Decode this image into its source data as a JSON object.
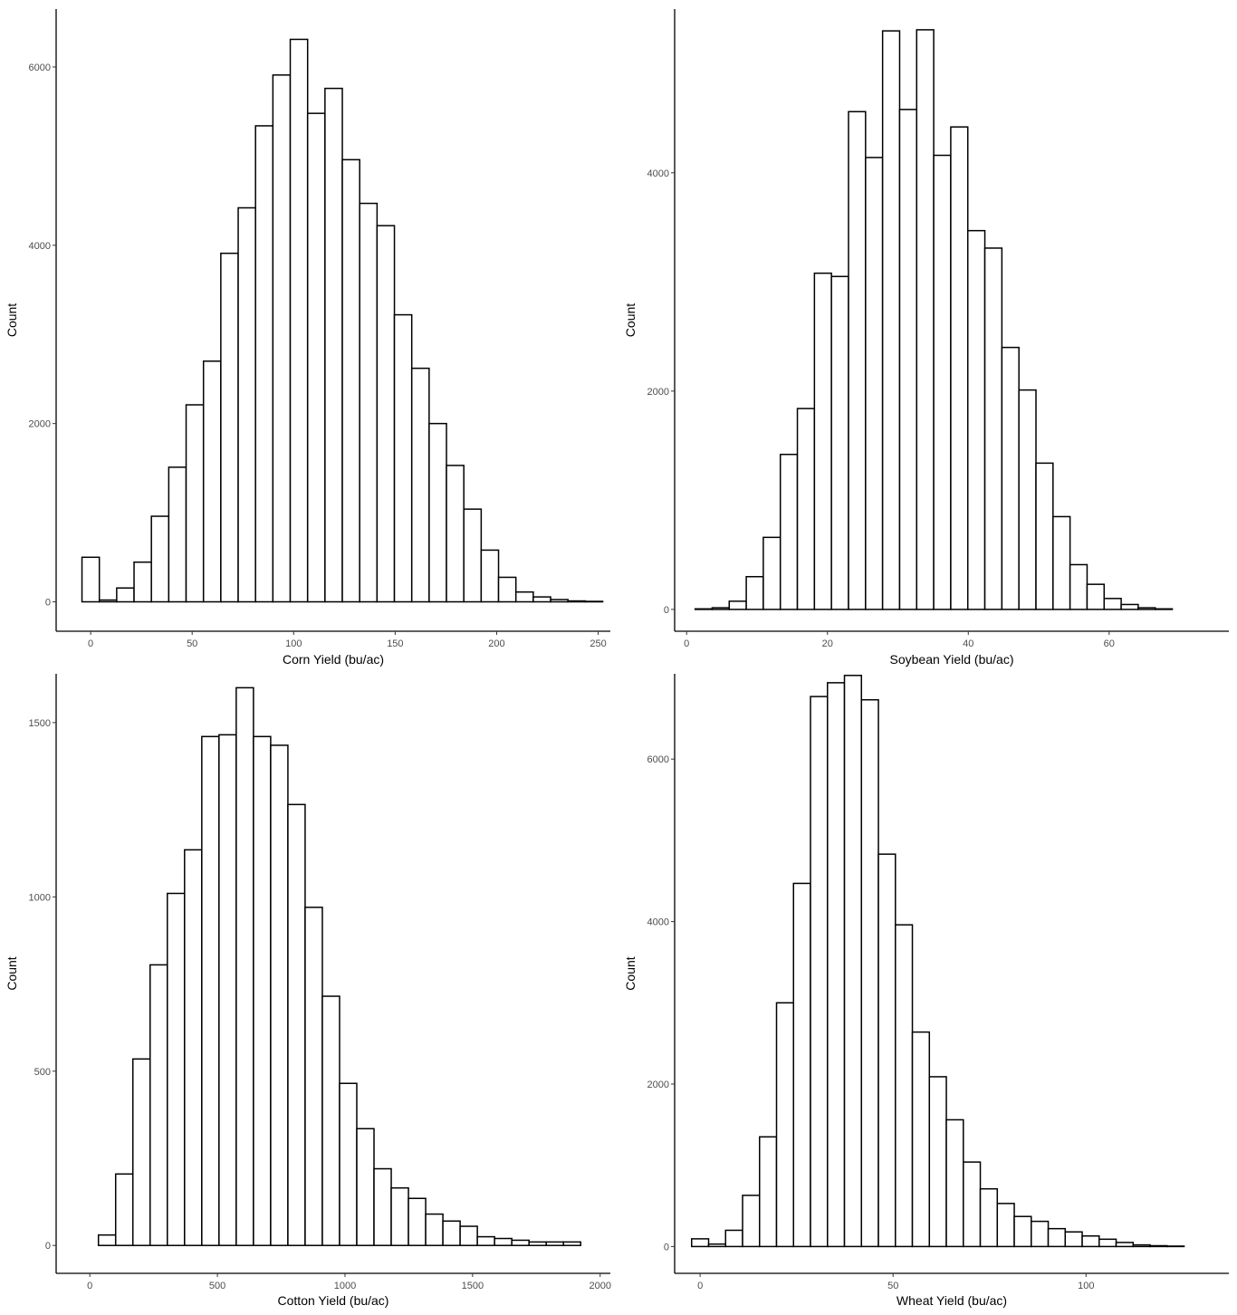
{
  "chart_data": [
    {
      "type": "bar",
      "subtype": "histogram",
      "xlabel": "Corn Yield (bu/ac)",
      "ylabel": "Count",
      "xlim": [
        -17,
        256
      ],
      "ylim": [
        -330,
        6650
      ],
      "xticks": [
        0,
        50,
        100,
        150,
        200,
        250
      ],
      "yticks": [
        0,
        2000,
        4000,
        6000
      ],
      "bin_width": 8.55,
      "bins_x": [
        0,
        8.55,
        17.1,
        25.65,
        34.2,
        42.75,
        51.3,
        59.85,
        68.4,
        76.95,
        85.5,
        94.05,
        102.6,
        111.15,
        119.7,
        128.25,
        136.8,
        145.35,
        153.9,
        162.45,
        171.0,
        179.55,
        188.1,
        196.65,
        205.2,
        213.75,
        222.3,
        230.85,
        239.4,
        247.95
      ],
      "values": [
        500,
        20,
        155,
        445,
        960,
        1510,
        2210,
        2700,
        3910,
        4420,
        5340,
        5910,
        6310,
        5480,
        5760,
        4960,
        4470,
        4220,
        3220,
        2620,
        2000,
        1530,
        1040,
        580,
        275,
        110,
        55,
        25,
        10,
        5
      ],
      "grid": false
    },
    {
      "type": "bar",
      "subtype": "histogram",
      "xlabel": "Soybean Yield (bu/ac)",
      "ylabel": "Count",
      "xlim": [
        -1.7,
        77
      ],
      "ylim": [
        -200,
        5500
      ],
      "xticks": [
        0,
        20,
        40,
        60
      ],
      "yticks": [
        0,
        2000,
        4000
      ],
      "bin_width": 2.42,
      "bins_x": [
        0,
        2.42,
        4.84,
        7.26,
        9.68,
        12.1,
        14.52,
        16.94,
        19.36,
        21.78,
        24.2,
        26.62,
        29.04,
        31.46,
        33.88,
        36.3,
        38.72,
        41.14,
        43.56,
        45.98,
        48.4,
        50.82,
        53.24,
        55.66,
        58.08,
        60.5,
        62.92,
        65.34,
        67.76,
        70.18
      ],
      "values": [
        0,
        5,
        15,
        75,
        300,
        660,
        1420,
        1840,
        3080,
        3050,
        4560,
        4140,
        5300,
        4580,
        5310,
        4160,
        4420,
        3470,
        3310,
        2400,
        2010,
        1340,
        850,
        410,
        230,
        100,
        45,
        15,
        5,
        0
      ],
      "grid": false
    },
    {
      "type": "bar",
      "subtype": "histogram",
      "xlabel": "Cotton Yield (bu/ac)",
      "ylabel": "Count",
      "xlim": [
        -132,
        2040
      ],
      "ylim": [
        -80,
        1640
      ],
      "xticks": [
        0,
        500,
        1000,
        1500,
        2000
      ],
      "yticks": [
        0,
        500,
        1000,
        1500
      ],
      "bin_width": 67.5,
      "bins_x": [
        0,
        67.5,
        135,
        202.5,
        270,
        337.5,
        405,
        472.5,
        540,
        607.5,
        675,
        742.5,
        810,
        877.5,
        945,
        1012.5,
        1080,
        1147.5,
        1215,
        1282.5,
        1350,
        1417.5,
        1485,
        1552.5,
        1620,
        1687.5,
        1755,
        1822.5,
        1890
      ],
      "values": [
        0,
        30,
        205,
        535,
        805,
        1010,
        1135,
        1460,
        1465,
        1600,
        1460,
        1435,
        1265,
        970,
        715,
        465,
        335,
        220,
        165,
        135,
        90,
        70,
        55,
        25,
        20,
        15,
        10,
        10,
        10
      ],
      "grid": false
    },
    {
      "type": "bar",
      "subtype": "histogram",
      "xlabel": "Wheat Yield (bu/ac)",
      "ylabel": "Count",
      "xlim": [
        -6.6,
        137
      ],
      "ylim": [
        -330,
        7050
      ],
      "xticks": [
        0,
        50,
        100
      ],
      "yticks": [
        0,
        2000,
        4000,
        6000
      ],
      "bin_width": 4.4,
      "bins_x": [
        0,
        4.4,
        8.8,
        13.2,
        17.6,
        22.0,
        26.4,
        30.8,
        35.2,
        39.6,
        44.0,
        48.4,
        52.8,
        57.2,
        61.6,
        66.0,
        70.4,
        74.8,
        79.2,
        83.6,
        88.0,
        92.4,
        96.8,
        101.2,
        105.6,
        110.0,
        114.4,
        118.8,
        123.2,
        127.6
      ],
      "values": [
        95,
        30,
        200,
        630,
        1350,
        3000,
        4470,
        6770,
        6940,
        7030,
        6730,
        4830,
        3960,
        2640,
        2090,
        1560,
        1040,
        710,
        530,
        370,
        310,
        220,
        180,
        130,
        90,
        50,
        20,
        10,
        5,
        0
      ],
      "grid": false
    }
  ]
}
